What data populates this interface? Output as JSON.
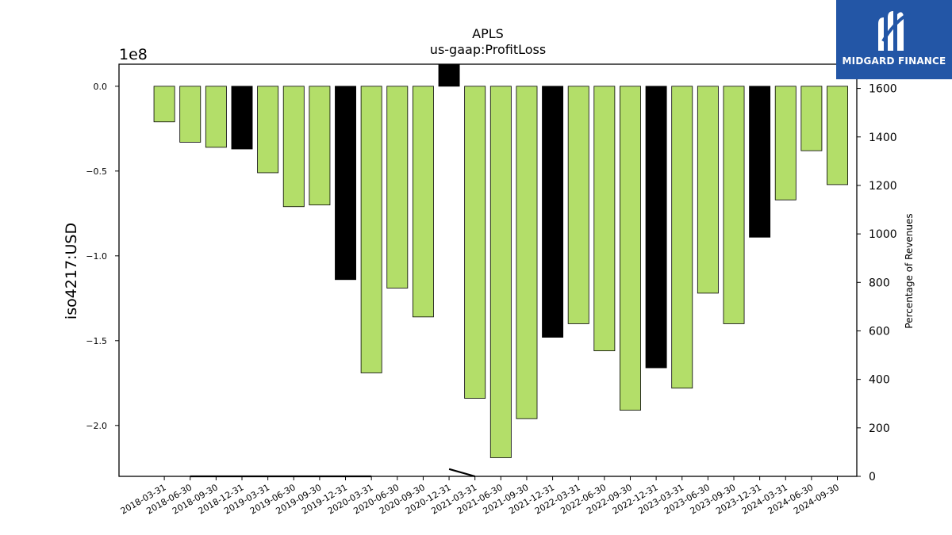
{
  "brand": {
    "name": "MIDGARD FINANCE",
    "bg_color": "#2356a6",
    "mark": "midgard-logo-icon"
  },
  "chart_data": {
    "type": "bar",
    "title": "APLS",
    "subtitle": "us-gaap:ProfitLoss",
    "ylabel": "iso4217:USD",
    "ylabel_right": "Percentage of Revenues",
    "y_offset_text": "1e8",
    "ylim": [
      -2.3,
      0.13
    ],
    "y_ticks": [
      0.0,
      -0.5,
      -1.0,
      -1.5,
      -2.0
    ],
    "y_tick_labels": [
      "0.0",
      "−0.5",
      "−1.0",
      "−1.5",
      "−2.0"
    ],
    "y2lim": [
      0,
      1700
    ],
    "y2_ticks": [
      0,
      200,
      400,
      600,
      800,
      1000,
      1200,
      1400,
      1600
    ],
    "y2_tick_labels": [
      "0",
      "200",
      "400",
      "600",
      "800",
      "1000",
      "1200",
      "1400",
      "1600"
    ],
    "colors": {
      "quarterly": "#b3de69",
      "annual": "#000000",
      "edge": "#000000",
      "line": "#000000"
    },
    "categories": [
      "2018-03-31",
      "2018-06-30",
      "2018-09-30",
      "2018-12-31",
      "2019-03-31",
      "2019-06-30",
      "2019-09-30",
      "2019-12-31",
      "2020-03-31",
      "2020-06-30",
      "2020-09-30",
      "2020-12-31",
      "2021-03-31",
      "2021-06-30",
      "2021-09-30",
      "2021-12-31",
      "2022-03-31",
      "2022-06-30",
      "2022-09-30",
      "2022-12-31",
      "2023-03-31",
      "2023-06-30",
      "2023-09-30",
      "2023-12-31",
      "2024-03-31",
      "2024-06-30",
      "2024-09-30"
    ],
    "values": [
      -0.21,
      -0.33,
      -0.36,
      -0.37,
      -0.51,
      -0.71,
      -0.7,
      -1.14,
      -1.69,
      -1.19,
      -1.36,
      0.13,
      -1.84,
      -2.19,
      -1.96,
      -1.48,
      -1.4,
      -1.56,
      -1.91,
      -1.66,
      -1.78,
      -1.22,
      -1.4,
      -0.89,
      -0.67,
      -0.38,
      -0.58
    ],
    "annual": [
      false,
      false,
      false,
      true,
      false,
      false,
      false,
      true,
      false,
      false,
      false,
      true,
      false,
      false,
      false,
      true,
      false,
      false,
      false,
      true,
      false,
      false,
      false,
      true,
      false,
      false,
      false
    ],
    "percentage_of_revenues": [
      null,
      0,
      0,
      0,
      0,
      0,
      0,
      0,
      0,
      null,
      null,
      30,
      0,
      null,
      null,
      null,
      null,
      null,
      null,
      null,
      null,
      null,
      null,
      null,
      null,
      null,
      null
    ]
  }
}
